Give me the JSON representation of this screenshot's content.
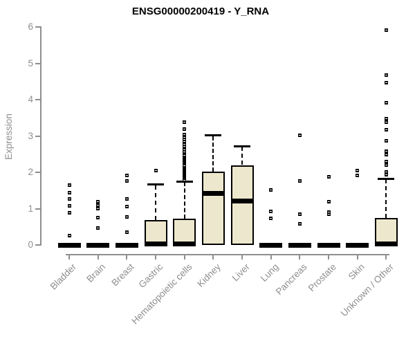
{
  "page": {
    "background": "#ffffff"
  },
  "chart_data": {
    "type": "boxplot",
    "title": "ENSG00000200419 - Y_RNA",
    "ylabel": "Expression",
    "xlabel": "",
    "ylim": [
      0,
      6
    ],
    "yticks": [
      0,
      1,
      2,
      3,
      4,
      5,
      6
    ],
    "grid": false,
    "legend": false,
    "colors": {
      "box_fill": "#ede7cd",
      "box_stroke": "#000000",
      "median": "#000000",
      "outlier": "#000000",
      "axis": "#8e8e8e",
      "background": "#ffffff"
    },
    "categories": [
      "Bladder",
      "Brain",
      "Breast",
      "Gastric",
      "Hematopoietic cells",
      "Kidney",
      "Liver",
      "Lung",
      "Pancreas",
      "Prostate",
      "Skin",
      "Unknown / Other"
    ],
    "boxes": [
      {
        "label": "Bladder",
        "q1": 0,
        "median": 0,
        "q3": 0,
        "whisker_low": 0,
        "whisker_high": 0,
        "outliers": [
          1.64,
          1.44,
          1.26,
          1.26,
          1.07,
          0.88,
          0.88,
          0.25
        ]
      },
      {
        "label": "Brain",
        "q1": 0,
        "median": 0,
        "q3": 0,
        "whisker_low": 0,
        "whisker_high": 0,
        "outliers": [
          1.19,
          1.09,
          1.0,
          0.76,
          0.46
        ]
      },
      {
        "label": "Breast",
        "q1": 0,
        "median": 0,
        "q3": 0,
        "whisker_low": 0,
        "whisker_high": 0,
        "outliers": [
          1.92,
          1.76,
          1.26,
          1.05,
          0.78,
          0.78,
          0.35
        ]
      },
      {
        "label": "Gastric",
        "q1": 0,
        "median": 0.02,
        "q3": 0.68,
        "whisker_low": 0,
        "whisker_high": 1.66,
        "outliers": [
          2.04
        ]
      },
      {
        "label": "Hematopoietic cells",
        "q1": 0,
        "median": 0.02,
        "q3": 0.72,
        "whisker_low": 0,
        "whisker_high": 1.75,
        "outliers": [
          1.79,
          1.83,
          1.87,
          1.91,
          1.95,
          1.99,
          2.03,
          2.07,
          2.11,
          2.15,
          2.19,
          2.23,
          2.27,
          2.31,
          2.35,
          2.39,
          2.43,
          2.47,
          2.52,
          2.57,
          2.62,
          2.67,
          2.72,
          2.78,
          2.84,
          2.9,
          2.97,
          3.03,
          3.19,
          3.38
        ]
      },
      {
        "label": "Kidney",
        "q1": 0,
        "median": 1.42,
        "q3": 2.01,
        "whisker_low": 0,
        "whisker_high": 3.01,
        "outliers": []
      },
      {
        "label": "Liver",
        "q1": 0,
        "median": 1.21,
        "q3": 2.2,
        "whisker_low": 0,
        "whisker_high": 2.72,
        "outliers": []
      },
      {
        "label": "Lung",
        "q1": 0,
        "median": 0,
        "q3": 0,
        "whisker_low": 0,
        "whisker_high": 0,
        "outliers": [
          1.52,
          0.92,
          0.74
        ]
      },
      {
        "label": "Pancreas",
        "q1": 0,
        "median": 0,
        "q3": 0,
        "whisker_low": 0,
        "whisker_high": 0,
        "outliers": [
          3.01,
          1.76,
          0.84,
          0.84,
          0.58
        ]
      },
      {
        "label": "Prostate",
        "q1": 0,
        "median": 0,
        "q3": 0,
        "whisker_low": 0,
        "whisker_high": 0,
        "outliers": [
          1.87,
          1.19,
          1.19,
          0.91,
          0.84
        ]
      },
      {
        "label": "Skin",
        "q1": 0,
        "median": 0,
        "q3": 0,
        "whisker_low": 0,
        "whisker_high": 0,
        "outliers": [
          2.04,
          1.92
        ]
      },
      {
        "label": "Unknown / Other",
        "q1": 0,
        "median": 0.02,
        "q3": 0.75,
        "whisker_low": 0,
        "whisker_high": 1.82,
        "outliers": [
          5.92,
          4.68,
          4.46,
          3.92,
          3.47,
          3.38,
          3.17,
          2.86,
          2.58,
          2.49,
          2.3,
          2.2,
          2.01,
          1.93
        ]
      }
    ]
  }
}
